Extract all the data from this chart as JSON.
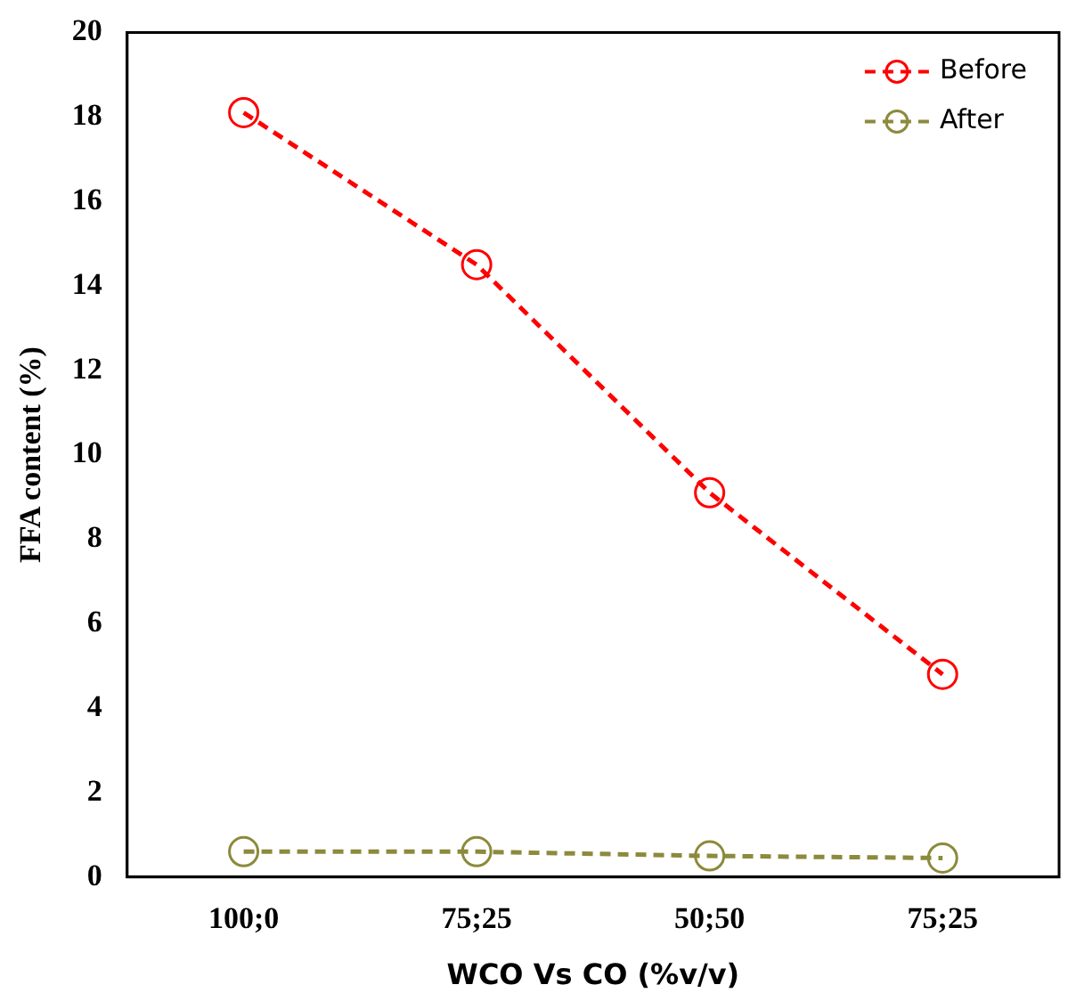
{
  "chart_data": {
    "type": "line",
    "xlabel": "WCO Vs CO (%v/v)",
    "ylabel": "FFA content (%)",
    "categories": [
      "100;0",
      "75;25",
      "50;50",
      "75;25"
    ],
    "series": [
      {
        "name": "Before",
        "color": "#ff0000",
        "values": [
          18.1,
          14.5,
          9.1,
          4.8
        ]
      },
      {
        "name": "After",
        "color": "#8c8a3c",
        "values": [
          0.6,
          0.6,
          0.5,
          0.45
        ]
      }
    ],
    "ylim": [
      0,
      20
    ],
    "yticks": [
      0,
      2,
      4,
      6,
      8,
      10,
      12,
      14,
      16,
      18,
      20
    ],
    "grid": false,
    "legend": "top right",
    "marker": "circle",
    "line_style": "dashed"
  }
}
